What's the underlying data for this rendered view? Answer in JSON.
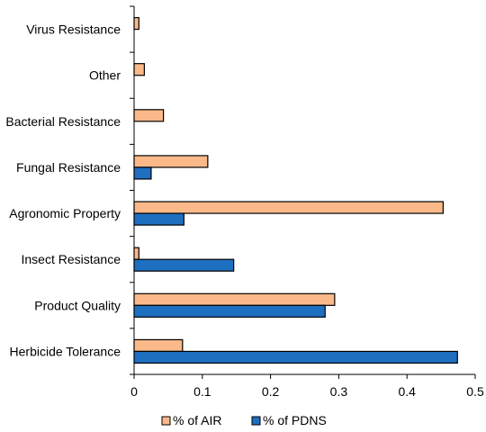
{
  "chart_data": {
    "type": "bar",
    "orientation": "horizontal",
    "categories": [
      "Virus Resistance",
      "Other",
      "Bacterial Resistance",
      "Fungal Resistance",
      "Agronomic Property",
      "Insect Resistance",
      "Product Quality",
      "Herbicide Tolerance"
    ],
    "series": [
      {
        "name": "% of AIR",
        "color": "#FBB98A",
        "values": [
          0.007,
          0.015,
          0.043,
          0.108,
          0.453,
          0.007,
          0.294,
          0.071
        ]
      },
      {
        "name": "% of PDNS",
        "color": "#1F6FC1",
        "values": [
          0,
          0,
          0,
          0.025,
          0.073,
          0.146,
          0.28,
          0.474
        ]
      }
    ],
    "xlim": [
      0,
      0.5
    ],
    "xticks": [
      "0",
      "0.1",
      "0.2",
      "0.3",
      "0.4",
      "0.5"
    ],
    "grid": false,
    "legend_position": "bottom",
    "title": "",
    "xlabel": "",
    "ylabel": ""
  }
}
